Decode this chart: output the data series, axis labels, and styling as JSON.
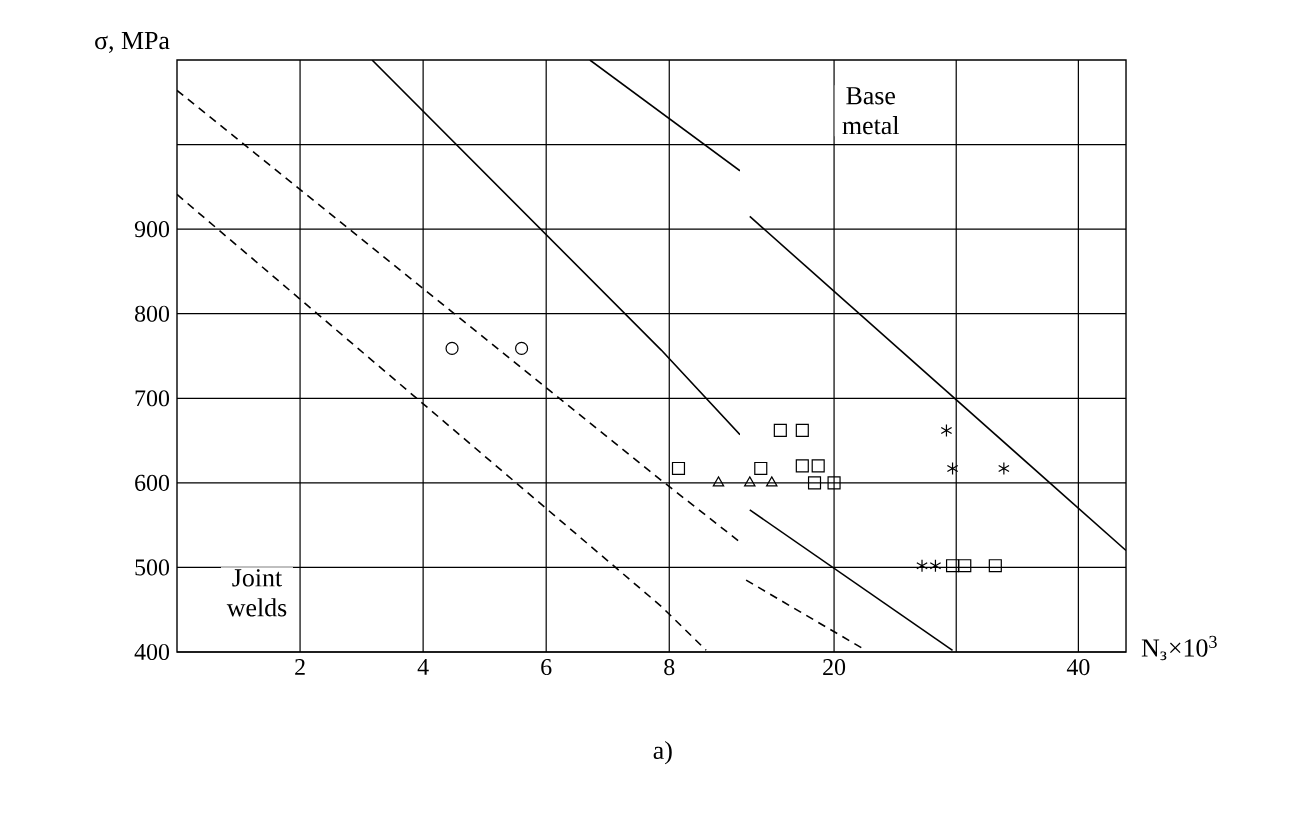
{
  "chart_data": [
    {
      "type": "scatter",
      "ylabel": "σ, MPa",
      "xlim": [
        0,
        9.15
      ],
      "ylim": [
        400,
        1100
      ],
      "xticks": [
        2,
        4,
        6,
        8
      ],
      "yticks": [
        400,
        500,
        600,
        700,
        800,
        900,
        {
          "value": 1000,
          "label": null
        }
      ],
      "grid": true,
      "annotations": [
        "Joint welds"
      ],
      "series": [
        {
          "type": "line",
          "line_style": "dashed",
          "color": "#000000",
          "marker": "none",
          "x": [
            0,
            7.87,
            9.15
          ],
          "values": [
            1064,
            603,
            530
          ]
        },
        {
          "type": "line",
          "line_style": "dashed",
          "color": "#000000",
          "marker": "none",
          "x": [
            0,
            7.87,
            8.6
          ],
          "values": [
            941,
            454,
            402
          ]
        },
        {
          "type": "line",
          "line_style": "solid",
          "color": "#000000",
          "marker": "none",
          "x": [
            3.17,
            7.87,
            9.15
          ],
          "values": [
            1100,
            757,
            657
          ]
        },
        {
          "type": "line",
          "line_style": "solid",
          "color": "#000000",
          "marker": "none",
          "x": [
            6.71,
            9.15
          ],
          "values": [
            1100,
            969
          ]
        },
        {
          "color": "#000000",
          "marker": "circle",
          "x": [
            4.47,
            5.6
          ],
          "values": [
            759,
            759
          ]
        },
        {
          "color": "#000000",
          "marker": "square",
          "x": [
            8.15
          ],
          "values": [
            617
          ]
        },
        {
          "color": "#000000",
          "marker": "triangle",
          "x": [
            8.8
          ],
          "values": [
            600
          ]
        }
      ]
    },
    {
      "type": "scatter",
      "xlabel": "N$_{з}$×10$^{3}$",
      "xlim": [
        12.3,
        43.9
      ],
      "ylim": [
        400,
        1100
      ],
      "xticks": [
        20,
        {
          "value": 30,
          "label": null
        },
        40
      ],
      "yticks": [
        400,
        500,
        600,
        700,
        800,
        900,
        1000
      ],
      "grid": true,
      "tick_labels": "x",
      "annotations": [
        "Base metal",
        "a)"
      ],
      "series": [
        {
          "type": "line",
          "line_style": "dashed",
          "color": "#000000",
          "marker": "none",
          "x": [
            12.8,
            22.6
          ],
          "values": [
            485,
            402
          ]
        },
        {
          "type": "line",
          "line_style": "solid",
          "color": "#000000",
          "marker": "none",
          "x": [
            13.1,
            29.7
          ],
          "values": [
            568,
            402
          ]
        },
        {
          "type": "line",
          "line_style": "solid",
          "color": "#000000",
          "marker": "none",
          "x": [
            13.1,
            43.9
          ],
          "values": [
            915,
            520
          ]
        },
        {
          "color": "#000000",
          "marker": "square",
          "x": [
            15.6,
            17.4,
            14.0,
            29.7,
            30.7,
            33.2
          ],
          "values": [
            662,
            662,
            617,
            502,
            502,
            502
          ]
        },
        {
          "color": "#000000",
          "marker": "square",
          "x": [
            17.4,
            18.7,
            20,
            18.4
          ],
          "values": [
            620,
            620,
            600,
            600
          ]
        },
        {
          "color": "#000000",
          "marker": "triangle",
          "x": [
            13.1,
            14.9
          ],
          "values": [
            600,
            600
          ]
        },
        {
          "color": "#000000",
          "marker": "cross",
          "x": [
            29.2,
            29.7,
            33.9,
            27.2,
            28.3
          ],
          "values": [
            662,
            617,
            617,
            502,
            502
          ]
        }
      ]
    }
  ]
}
